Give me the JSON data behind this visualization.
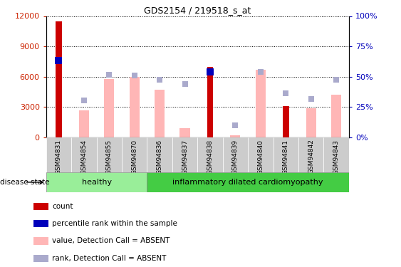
{
  "title": "GDS2154 / 219518_s_at",
  "samples": [
    "GSM94831",
    "GSM94854",
    "GSM94855",
    "GSM94870",
    "GSM94836",
    "GSM94837",
    "GSM94838",
    "GSM94839",
    "GSM94840",
    "GSM94841",
    "GSM94842",
    "GSM94843"
  ],
  "groups": [
    "healthy",
    "healthy",
    "healthy",
    "healthy",
    "inflammatory dilated cardiomyopathy",
    "inflammatory dilated cardiomyopathy",
    "inflammatory dilated cardiomyopathy",
    "inflammatory dilated cardiomyopathy",
    "inflammatory dilated cardiomyopathy",
    "inflammatory dilated cardiomyopathy",
    "inflammatory dilated cardiomyopathy",
    "inflammatory dilated cardiomyopathy"
  ],
  "count_values": [
    11500,
    0,
    0,
    0,
    0,
    0,
    7000,
    0,
    0,
    3100,
    0,
    0
  ],
  "percentile_values": [
    7600,
    0,
    0,
    0,
    0,
    0,
    6500,
    0,
    0,
    0,
    0,
    0
  ],
  "value_absent": [
    0,
    2700,
    5800,
    6000,
    4700,
    900,
    0,
    200,
    6700,
    0,
    2900,
    4200
  ],
  "rank_absent": [
    0,
    3700,
    6200,
    6100,
    5700,
    5300,
    0,
    1200,
    6500,
    4400,
    3800,
    5700
  ],
  "rank_absent_dot_only": [
    false,
    false,
    false,
    false,
    false,
    true,
    false,
    true,
    false,
    true,
    true,
    true
  ],
  "ylim_left": [
    0,
    12000
  ],
  "yticks_left": [
    0,
    3000,
    6000,
    9000,
    12000
  ],
  "ytick_labels_right": [
    "0%",
    "25%",
    "50%",
    "75%",
    "100%"
  ],
  "count_color": "#CC0000",
  "percentile_color": "#0000BB",
  "value_absent_color": "#FFB6B6",
  "rank_absent_color": "#AAAACC",
  "axis_color_left": "#CC2200",
  "axis_color_right": "#0000BB",
  "bg_color": "#FFFFFF",
  "plot_bg": "#FFFFFF",
  "grid_color": "#000000",
  "tick_box_color": "#CCCCCC",
  "healthy_color": "#99EE99",
  "inflam_color": "#44CC44",
  "disease_state_label": "disease state",
  "legend_items": [
    "count",
    "percentile rank within the sample",
    "value, Detection Call = ABSENT",
    "rank, Detection Call = ABSENT"
  ],
  "legend_colors": [
    "#CC0000",
    "#0000BB",
    "#FFB6B6",
    "#AAAACC"
  ]
}
